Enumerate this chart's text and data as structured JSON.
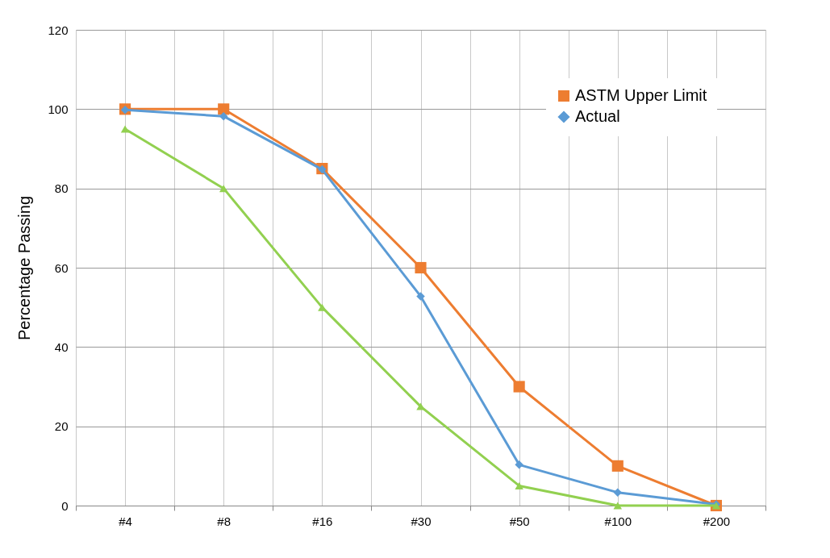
{
  "chart_data": {
    "type": "line",
    "ylabel": "Percentage Passing",
    "categories": [
      "#4",
      "#8",
      "#16",
      "#30",
      "#50",
      "#100",
      "#200"
    ],
    "series": [
      {
        "name": "ASTM Upper Limit",
        "color": "#ed7d31",
        "marker": "square",
        "values": [
          100,
          100,
          85,
          60,
          30,
          10,
          0
        ]
      },
      {
        "name": "Actual",
        "color": "#5b9bd5",
        "marker": "diamond",
        "values": [
          99.8,
          98.2,
          84.8,
          52.8,
          10.3,
          3.3,
          0.3
        ]
      },
      {
        "color": "#92d050",
        "marker": "triangle",
        "values": [
          95,
          80,
          50,
          25,
          5,
          0,
          0
        ]
      }
    ],
    "ylim": [
      0,
      120
    ],
    "yticks": [
      0,
      20,
      40,
      60,
      80,
      100,
      120
    ],
    "grid": true,
    "legend": "top right",
    "line_style": "solid"
  }
}
